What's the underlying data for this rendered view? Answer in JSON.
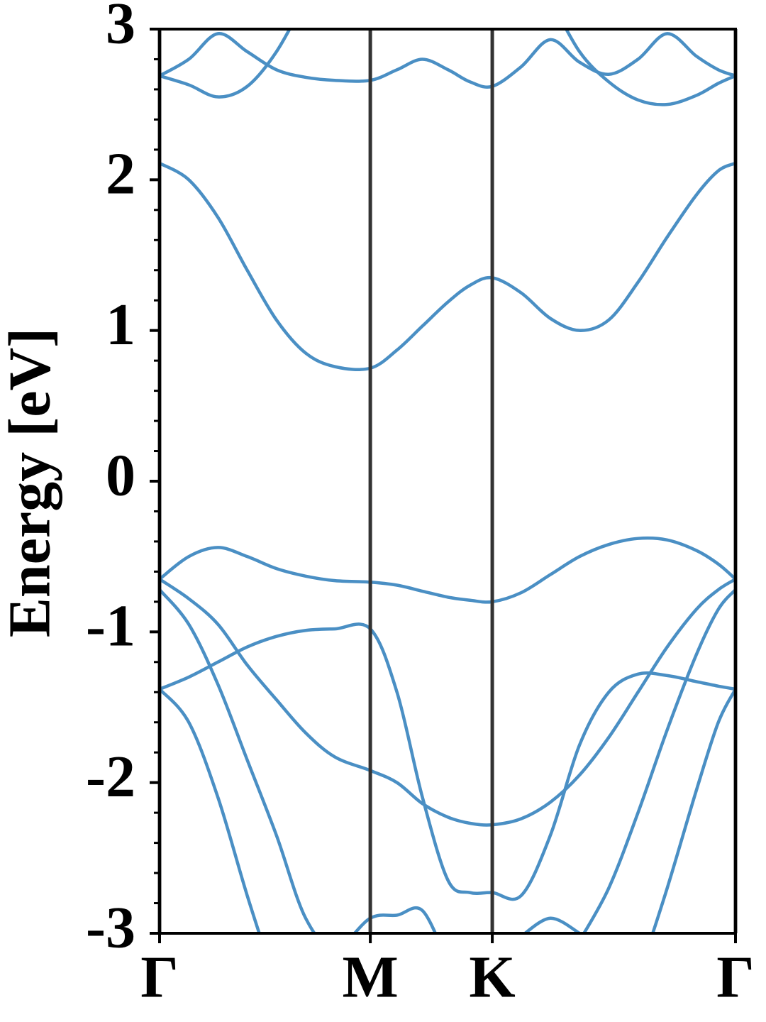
{
  "chart_data": {
    "type": "line",
    "ylabel": "Energy [eV]",
    "x": [
      0,
      0.08,
      0.16,
      0.24,
      0.32,
      0.4,
      0.48,
      0.577,
      0.65,
      0.72,
      0.79,
      0.85,
      0.911,
      0.99,
      1.07,
      1.15,
      1.23,
      1.31,
      1.39,
      1.47,
      1.53,
      1.577
    ],
    "xlim": [
      0,
      1.577
    ],
    "xticks": [
      {
        "value": 0,
        "label": "Γ"
      },
      {
        "value": 0.577,
        "label": "M"
      },
      {
        "value": 0.911,
        "label": "K"
      },
      {
        "value": 1.577,
        "label": "Γ"
      }
    ],
    "ylim": [
      -3,
      3
    ],
    "yticks": [
      -3,
      -2,
      -1,
      0,
      1,
      2,
      3
    ],
    "yminorticks": [
      -2.8,
      -2.6,
      -2.4,
      -2.2,
      -1.8,
      -1.6,
      -1.4,
      -1.2,
      -0.8,
      -0.6,
      -0.4,
      -0.2,
      0.2,
      0.4,
      0.6,
      0.8,
      1.2,
      1.4,
      1.6,
      1.8,
      2.2,
      2.4,
      2.6,
      2.8
    ],
    "series": [
      {
        "color": "#4a8fc4",
        "values": [
          2.11,
          2.0,
          1.75,
          1.4,
          1.07,
          0.85,
          0.76,
          0.75,
          0.87,
          1.03,
          1.19,
          1.3,
          1.35,
          1.25,
          1.08,
          1.0,
          1.07,
          1.32,
          1.62,
          1.9,
          2.06,
          2.11
        ]
      },
      {
        "color": "#4a8fc4",
        "values": [
          -0.65,
          -0.5,
          -0.44,
          -0.5,
          -0.58,
          -0.63,
          -0.66,
          -0.67,
          -0.69,
          -0.73,
          -0.77,
          -0.79,
          -0.8,
          -0.74,
          -0.62,
          -0.5,
          -0.42,
          -0.38,
          -0.39,
          -0.46,
          -0.55,
          -0.65
        ]
      },
      {
        "color": "#4a8fc4",
        "values": [
          -0.65,
          -0.78,
          -0.95,
          -1.22,
          -1.45,
          -1.67,
          -1.83,
          -1.92,
          -2.0,
          -2.14,
          -2.23,
          -2.27,
          -2.28,
          -2.24,
          -2.13,
          -1.95,
          -1.7,
          -1.4,
          -1.1,
          -0.85,
          -0.72,
          -0.65
        ]
      },
      {
        "color": "#4a8fc4",
        "values": [
          -0.72,
          -0.95,
          -1.35,
          -1.85,
          -2.35,
          -2.9,
          -3.1,
          -2.9,
          -2.88,
          -2.85,
          -3.2,
          null,
          null,
          -3.02,
          -2.9,
          -3.0,
          null,
          null,
          null,
          null,
          null,
          null
        ]
      },
      {
        "color": "#4a8fc4",
        "values": [
          null,
          null,
          null,
          null,
          null,
          null,
          null,
          null,
          null,
          null,
          null,
          null,
          null,
          null,
          null,
          -3.05,
          -2.7,
          -2.2,
          -1.65,
          -1.15,
          -0.85,
          -0.72
        ]
      },
      {
        "color": "#4a8fc4",
        "values": [
          -1.38,
          -1.3,
          -1.2,
          -1.1,
          -1.03,
          -0.99,
          -0.98,
          -0.98,
          -1.4,
          -2.1,
          -2.65,
          -2.73,
          -2.73,
          -2.75,
          -2.35,
          -1.75,
          -1.4,
          -1.28,
          -1.29,
          -1.33,
          -1.36,
          -1.38
        ]
      },
      {
        "color": "#4a8fc4",
        "values": [
          -1.38,
          -1.6,
          -2.1,
          -2.75,
          -3.35,
          null,
          null,
          null,
          null,
          null,
          null,
          null,
          null,
          null,
          null,
          null,
          null,
          -3.3,
          -2.7,
          -2.05,
          -1.6,
          -1.38
        ]
      },
      {
        "color": "#4a8fc4",
        "values": [
          2.69,
          2.63,
          2.55,
          2.62,
          2.85,
          3.2,
          null,
          null,
          null,
          null,
          null,
          null,
          null,
          null,
          null,
          null,
          null,
          null,
          null,
          null,
          null,
          null
        ]
      },
      {
        "color": "#4a8fc4",
        "values": [
          2.69,
          2.8,
          2.97,
          2.85,
          2.73,
          2.68,
          2.66,
          2.66,
          2.73,
          2.8,
          2.73,
          2.65,
          2.62,
          2.75,
          2.93,
          2.78,
          2.7,
          2.8,
          2.97,
          2.82,
          2.73,
          2.69
        ]
      },
      {
        "color": "#4a8fc4",
        "values": [
          null,
          null,
          null,
          null,
          null,
          null,
          null,
          null,
          null,
          null,
          null,
          null,
          null,
          null,
          3.2,
          2.85,
          2.65,
          2.53,
          2.5,
          2.56,
          2.64,
          2.69
        ]
      }
    ]
  }
}
